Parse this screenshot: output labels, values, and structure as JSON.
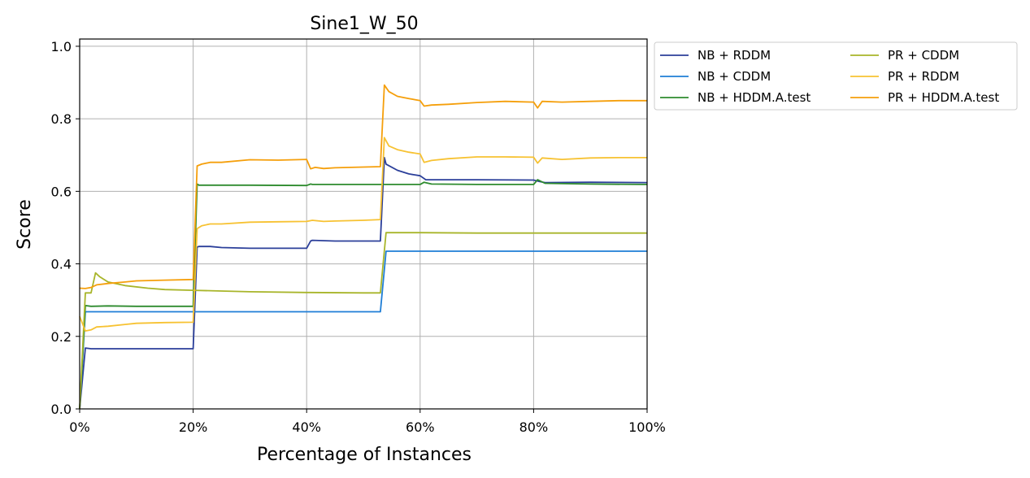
{
  "chart_data": {
    "type": "line",
    "title": "Sine1_W_50",
    "xlabel": "Percentage of Instances",
    "ylabel": "Score",
    "xlim": [
      0,
      100
    ],
    "ylim": [
      0,
      1.02
    ],
    "xticks": [
      0,
      20,
      40,
      60,
      80,
      100
    ],
    "xtick_labels": [
      "0%",
      "20%",
      "40%",
      "60%",
      "80%",
      "100%"
    ],
    "yticks": [
      0.0,
      0.2,
      0.4,
      0.6,
      0.8,
      1.0
    ],
    "ytick_labels": [
      "0.0",
      "0.2",
      "0.4",
      "0.6",
      "0.8",
      "1.0"
    ],
    "grid": true,
    "legend_position": "outside-right-top",
    "series": [
      {
        "name": "NB + RDDM",
        "color": "#2b3f9a",
        "x": [
          0,
          1,
          2,
          5,
          10,
          20,
          20.7,
          21,
          23,
          25,
          30,
          35,
          40,
          40.7,
          41,
          45,
          50,
          53,
          53.7,
          54,
          56,
          58,
          60,
          61,
          70,
          80,
          81,
          82,
          90,
          100
        ],
        "y": [
          0.0,
          0.168,
          0.166,
          0.166,
          0.166,
          0.166,
          0.446,
          0.448,
          0.448,
          0.445,
          0.443,
          0.443,
          0.443,
          0.463,
          0.465,
          0.463,
          0.463,
          0.463,
          0.693,
          0.675,
          0.658,
          0.648,
          0.643,
          0.632,
          0.632,
          0.631,
          0.627,
          0.624,
          0.625,
          0.624
        ]
      },
      {
        "name": "NB + CDDM",
        "color": "#1f7ed6",
        "x": [
          0,
          1,
          2,
          10,
          20,
          30,
          40,
          50,
          53,
          54,
          60,
          70,
          80,
          90,
          100
        ],
        "y": [
          0.0,
          0.268,
          0.268,
          0.268,
          0.268,
          0.268,
          0.268,
          0.268,
          0.268,
          0.435,
          0.435,
          0.435,
          0.435,
          0.435,
          0.435
        ]
      },
      {
        "name": "NB + HDDM.A.test",
        "color": "#2e8b2e",
        "x": [
          0,
          1,
          2,
          5,
          10,
          20,
          20.7,
          21,
          25,
          30,
          40,
          40.7,
          41,
          45,
          53,
          54,
          60,
          60.7,
          62,
          70,
          80,
          80.7,
          82,
          90,
          100
        ],
        "y": [
          0.0,
          0.285,
          0.283,
          0.284,
          0.283,
          0.283,
          0.62,
          0.617,
          0.617,
          0.617,
          0.616,
          0.62,
          0.619,
          0.619,
          0.619,
          0.619,
          0.619,
          0.625,
          0.62,
          0.619,
          0.619,
          0.632,
          0.622,
          0.62,
          0.619
        ]
      },
      {
        "name": "PR + CDDM",
        "color": "#a8b52a",
        "x": [
          0,
          1,
          2,
          2.8,
          3.5,
          5,
          8,
          12,
          15,
          20,
          25,
          30,
          40,
          50,
          53,
          54,
          60,
          70,
          80,
          90,
          100
        ],
        "y": [
          0.0,
          0.32,
          0.32,
          0.375,
          0.365,
          0.35,
          0.34,
          0.333,
          0.329,
          0.327,
          0.325,
          0.323,
          0.321,
          0.32,
          0.32,
          0.486,
          0.486,
          0.485,
          0.485,
          0.485,
          0.485
        ]
      },
      {
        "name": "PR + RDDM",
        "color": "#f7c232",
        "x": [
          0,
          1,
          2,
          3,
          5,
          8,
          10,
          15,
          20,
          20.7,
          21.5,
          23,
          25,
          30,
          35,
          40,
          41,
          43,
          45,
          50,
          53,
          53.7,
          54.5,
          56,
          58,
          60,
          60.7,
          62,
          65,
          70,
          75,
          80,
          80.7,
          81.5,
          85,
          90,
          95,
          100
        ],
        "y": [
          0.255,
          0.215,
          0.218,
          0.226,
          0.228,
          0.233,
          0.236,
          0.238,
          0.239,
          0.497,
          0.505,
          0.51,
          0.51,
          0.515,
          0.516,
          0.517,
          0.52,
          0.517,
          0.518,
          0.52,
          0.522,
          0.748,
          0.725,
          0.715,
          0.708,
          0.703,
          0.68,
          0.685,
          0.69,
          0.695,
          0.695,
          0.694,
          0.678,
          0.692,
          0.688,
          0.692,
          0.693,
          0.693
        ]
      },
      {
        "name": "PR + HDDM.A.test",
        "color": "#f59f0b",
        "x": [
          0,
          1,
          2,
          3,
          5,
          8,
          10,
          15,
          20,
          20.7,
          21.5,
          23,
          25,
          30,
          35,
          40,
          40.7,
          41.5,
          43,
          45,
          50,
          53,
          53.7,
          54.5,
          56,
          58,
          60,
          60.7,
          62,
          65,
          70,
          75,
          80,
          80.7,
          81.5,
          85,
          90,
          95,
          100
        ],
        "y": [
          0.333,
          0.332,
          0.335,
          0.342,
          0.346,
          0.35,
          0.353,
          0.355,
          0.357,
          0.67,
          0.675,
          0.68,
          0.68,
          0.687,
          0.686,
          0.688,
          0.662,
          0.666,
          0.663,
          0.665,
          0.667,
          0.668,
          0.893,
          0.875,
          0.862,
          0.856,
          0.85,
          0.835,
          0.838,
          0.84,
          0.845,
          0.848,
          0.846,
          0.83,
          0.848,
          0.846,
          0.848,
          0.85,
          0.85
        ]
      }
    ]
  }
}
